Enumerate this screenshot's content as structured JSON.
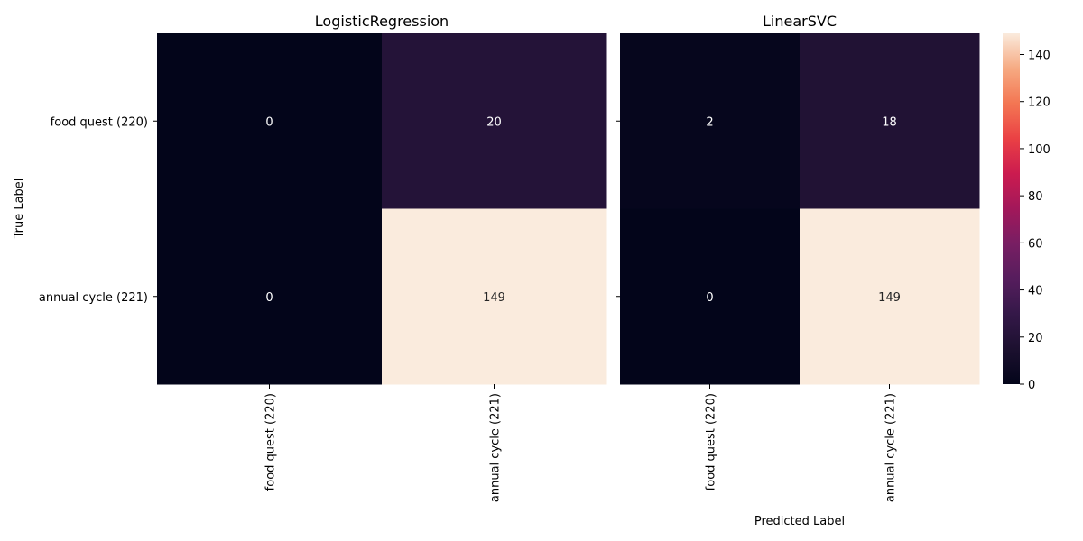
{
  "chart_data": [
    {
      "type": "heatmap",
      "title": "LogisticRegression",
      "x_categories": [
        "food quest (220)",
        "annual cycle (221)"
      ],
      "y_categories": [
        "food quest (220)",
        "annual cycle (221)"
      ],
      "values": [
        [
          0,
          20
        ],
        [
          0,
          149
        ]
      ],
      "xlabel": "",
      "ylabel": "True Label"
    },
    {
      "type": "heatmap",
      "title": "LinearSVC",
      "x_categories": [
        "food quest (220)",
        "annual cycle (221)"
      ],
      "y_categories": [
        "food quest (220)",
        "annual cycle (221)"
      ],
      "values": [
        [
          2,
          18
        ],
        [
          0,
          149
        ]
      ],
      "xlabel": "Predicted Label",
      "ylabel": ""
    }
  ],
  "colorbar": {
    "range": [
      0,
      149
    ],
    "ticks": [
      0,
      20,
      40,
      60,
      80,
      100,
      120,
      140
    ],
    "colormap": "rocket"
  }
}
